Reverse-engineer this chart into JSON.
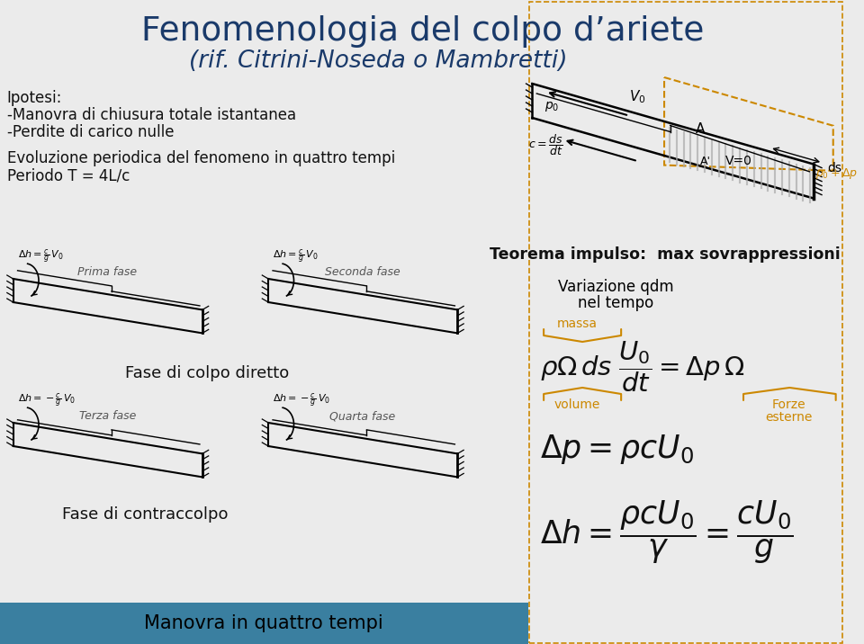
{
  "title1": "Fenomenologia del colpo d’ariete",
  "title2": "(rif. Citrini-Noseda o Mambretti)",
  "bg_color": "#ebebeb",
  "header_lines": [
    "Ipotesi:",
    "-Manovra di chiusura totale istantanea",
    "-Perdite di carico nulle",
    "Evoluzione periodica del fenomeno in quattro tempi",
    "Periodo T = 4L/c"
  ],
  "teorema_text": "Teorema impulso:  max sovrappressioni",
  "variazione_text1": "Variazione qdm",
  "variazione_text2": "nel tempo",
  "massa_text": "massa",
  "volume_text": "volume",
  "forze_text1": "Forze",
  "forze_text2": "esterne",
  "fase_colpo": "Fase di colpo diretto",
  "fase_contraccolpo": "Fase di contraccolpo",
  "manovra_text": "Manovra in quattro tempi",
  "manovra_bg": "#3a7fa0",
  "title_color": "#1a3a6a",
  "orange_color": "#cc8800",
  "text_color": "#111111"
}
